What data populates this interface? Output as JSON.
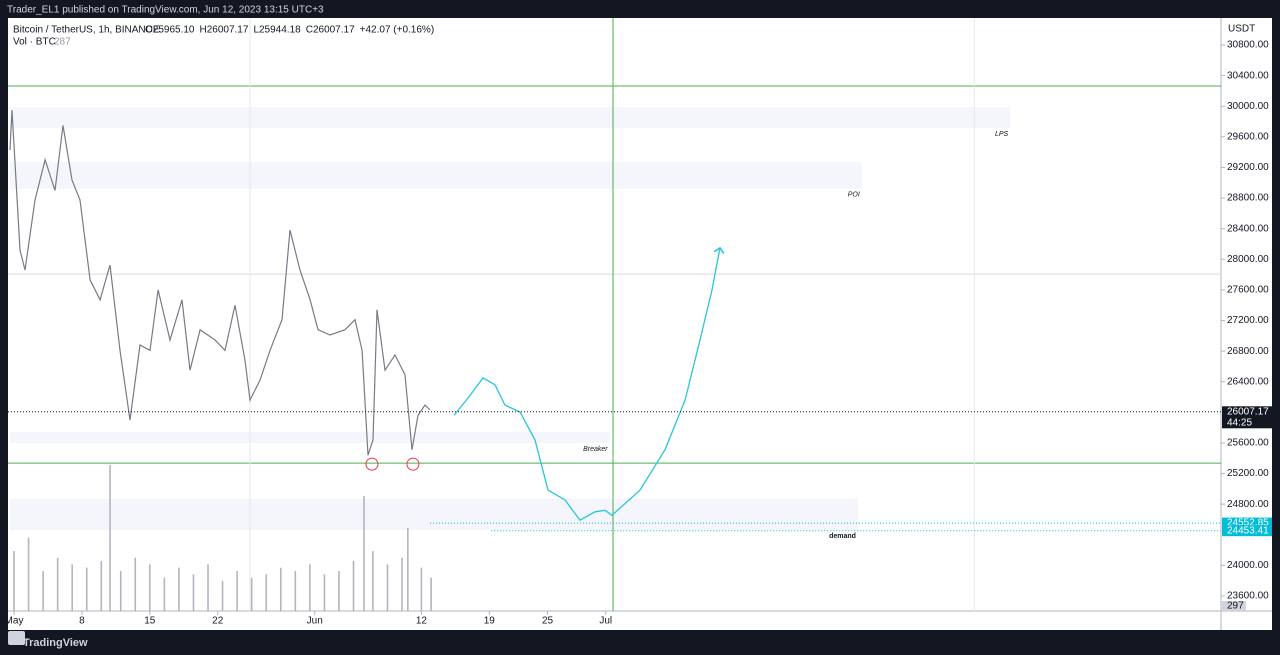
{
  "header": {
    "publisher": "Trader_EL1 published on TradingView.com, Jun 12, 2023 13:15 UTC+3",
    "footer": "TradingView"
  },
  "chart_data": {
    "type": "line",
    "symbol": "Bitcoin / TetherUS, 1h, BINANCE",
    "ohlc": [
      "O25965.10",
      "H26007.17",
      "L25944.18",
      "C26007.17",
      "+42.07 (+0.16%)"
    ],
    "axis_unit": "USDT",
    "color": "#787b86",
    "xlim": [
      -0.62,
      124.43
    ],
    "ylim": [
      23404,
      31153
    ],
    "xticks": [
      {
        "value": 0,
        "label": "May"
      },
      {
        "value": 7,
        "label": "8"
      },
      {
        "value": 14,
        "label": "15"
      },
      {
        "value": 21,
        "label": "22"
      },
      {
        "value": 31,
        "label": "Jun"
      },
      {
        "value": 42,
        "label": "12"
      },
      {
        "value": 49,
        "label": "19"
      },
      {
        "value": 55,
        "label": "25"
      },
      {
        "value": 61,
        "label": "Jul"
      }
    ],
    "yticks": [
      {
        "value": 30800,
        "label": "30800.00"
      },
      {
        "value": 30400,
        "label": "30400.00"
      },
      {
        "value": 30000,
        "label": "30000.00"
      },
      {
        "value": 29600,
        "label": "29600.00"
      },
      {
        "value": 29200,
        "label": "29200.00"
      },
      {
        "value": 28800,
        "label": "28800.00"
      },
      {
        "value": 28400,
        "label": "28400.00"
      },
      {
        "value": 28000,
        "label": "28000.00"
      },
      {
        "value": 27600,
        "label": "27600.00"
      },
      {
        "value": 27200,
        "label": "27200.00"
      },
      {
        "value": 26800,
        "label": "26800.00"
      },
      {
        "value": 26400,
        "label": "26400.00"
      },
      {
        "value": 25600,
        "label": "25600.00"
      },
      {
        "value": 25200,
        "label": "25200.00"
      },
      {
        "value": 24800,
        "label": "24800.00"
      },
      {
        "value": 24000,
        "label": "24000.00"
      },
      {
        "value": 23600,
        "label": "23600.00"
      }
    ],
    "x": [
      -0.41,
      -0.21,
      0.62,
      1.13,
      2.16,
      3.2,
      4.23,
      5.05,
      5.98,
      6.8,
      7.84,
      8.87,
      9.9,
      10.93,
      11.96,
      12.99,
      14.02,
      14.85,
      16.08,
      17.32,
      18.14,
      19.18,
      20.72,
      21.75,
      22.78,
      23.81,
      24.33,
      25.36,
      26.39,
      27.63,
      28.45,
      29.48,
      30.52,
      31.34,
      32.58,
      34.12,
      35.15,
      35.88,
      36.49,
      37.01,
      37.42,
      38.25,
      39.28,
      40.31,
      41.03,
      41.65,
      42.37,
      42.89
    ],
    "values": [
      29428,
      29950,
      28120,
      27860,
      28775,
      29300,
      28900,
      29750,
      29035,
      28775,
      27730,
      27470,
      27925,
      26810,
      25900,
      26880,
      26810,
      27600,
      26945,
      27470,
      26550,
      27080,
      26945,
      26810,
      27400,
      26680,
      26160,
      26420,
      26810,
      27210,
      28380,
      27860,
      27470,
      27080,
      27010,
      27080,
      27210,
      26810,
      25440,
      25640,
      27340,
      26550,
      26750,
      26490,
      25510,
      25960,
      26095,
      26030
    ],
    "projection": {
      "color": "#26c6da",
      "x": [
        45.36,
        47.01,
        48.35,
        49.59,
        50.62,
        52.16,
        53.71,
        55.05,
        56.8,
        58.35,
        59.9,
        60.93,
        61.65,
        64.54,
        67.11,
        69.18,
        70.72,
        71.96,
        72.78
      ],
      "values": [
        25960,
        26220,
        26450,
        26360,
        26095,
        26005,
        25640,
        24985,
        24855,
        24590,
        24700,
        24720,
        24655,
        24985,
        25510,
        26160,
        26945,
        27600,
        28150
      ]
    },
    "zones": [
      {
        "label": "LPS",
        "x": [
          -0.41,
          102.7
        ],
        "y": [
          29715,
          29990
        ]
      },
      {
        "label": "POI",
        "x": [
          -0.41,
          87.4
        ],
        "y": [
          28920,
          29270
        ]
      },
      {
        "label": "Breaker",
        "x": [
          -0.41,
          61.4
        ],
        "y": [
          25600,
          25740
        ]
      },
      {
        "label": "demand",
        "x": [
          -0.41,
          87.0
        ],
        "y": [
          24460,
          24870
        ]
      }
    ],
    "hlines": [
      {
        "value": 30264,
        "color": "#4caf50"
      },
      {
        "value": 25336,
        "color": "#4caf50"
      },
      {
        "value": 27806,
        "color": "#d9dadd"
      }
    ],
    "vlines": [
      {
        "value": 61.75,
        "color": "#4caf50"
      },
      {
        "value": 24.33,
        "color": "#e6e7ea"
      },
      {
        "value": 99.0,
        "color": "#e6e7ea"
      }
    ],
    "markers": {
      "color": "#f23645",
      "x": [
        36.9,
        41.13
      ],
      "values": [
        25323,
        25323
      ]
    },
    "price_labels": [
      {
        "value": 26007.17,
        "sub": "44:25",
        "color": "#131722",
        "from": -0.62
      },
      {
        "value": 24552.85,
        "color": "#00bcd4",
        "from": 42.89
      },
      {
        "value": 24453.41,
        "color": "#00bcd4",
        "from": 49.2
      }
    ],
    "volume": {
      "label": "Vol · BTC",
      "last": 287,
      "axis_value": 297,
      "color": "#b2b5be",
      "vlim": [
        0,
        3000
      ],
      "x": [
        0,
        1.5,
        3,
        4.5,
        6,
        7.5,
        9,
        9.9,
        11,
        12.5,
        14,
        15.5,
        17,
        18.5,
        20,
        21.5,
        23,
        24.5,
        26,
        27.5,
        29,
        30.5,
        32,
        33.5,
        35,
        36.08,
        37,
        38.5,
        40,
        40.6,
        42,
        43
      ],
      "values": [
        900,
        1100,
        600,
        800,
        700,
        650,
        750,
        2190,
        600,
        800,
        700,
        500,
        650,
        550,
        700,
        450,
        600,
        500,
        550,
        650,
        600,
        700,
        550,
        600,
        750,
        1725,
        900,
        700,
        800,
        1245,
        650,
        500
      ]
    }
  }
}
